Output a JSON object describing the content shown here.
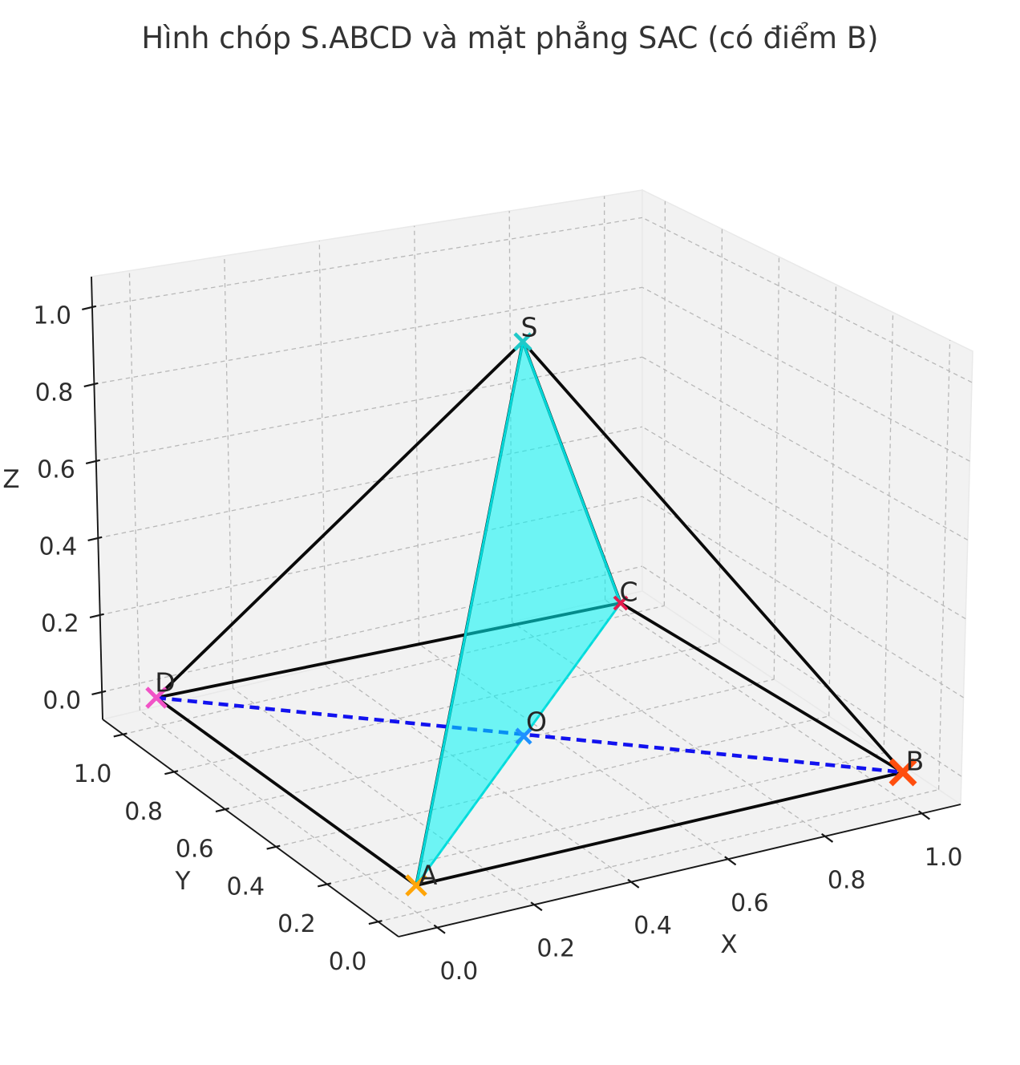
{
  "title": "Hình chóp S.ABCD và mặt phẳng SAC (có điểm B)",
  "chart_data": {
    "type": "scatter",
    "projection": "3d",
    "points": [
      {
        "label": "S",
        "x": 0.5,
        "y": 0.5,
        "z": 1.0,
        "marker": "x",
        "marker_color": "#1FC9C9"
      },
      {
        "label": "A",
        "x": 0.0,
        "y": 0.0,
        "z": 0.0,
        "marker": "x",
        "marker_color": "#FFA508"
      },
      {
        "label": "B",
        "x": 1.0,
        "y": 0.0,
        "z": 0.0,
        "marker": "x",
        "marker_color": "#FF4E0E"
      },
      {
        "label": "C",
        "x": 1.0,
        "y": 1.0,
        "z": 0.0,
        "marker": "x",
        "marker_color": "#E51B4D"
      },
      {
        "label": "D",
        "x": 0.0,
        "y": 1.0,
        "z": 0.0,
        "marker": "x",
        "marker_color": "#F153C6"
      },
      {
        "label": "O",
        "x": 0.5,
        "y": 0.5,
        "z": 0.0,
        "marker": "x",
        "marker_color": "#1E90FF"
      }
    ],
    "solid_edges": {
      "color": "#0a0a0a",
      "pairs": [
        [
          "A",
          "B"
        ],
        [
          "B",
          "C"
        ],
        [
          "C",
          "D"
        ],
        [
          "D",
          "A"
        ],
        [
          "S",
          "A"
        ],
        [
          "S",
          "B"
        ],
        [
          "S",
          "C"
        ],
        [
          "S",
          "D"
        ]
      ]
    },
    "dashed_diagonals": [
      {
        "name": "AC-hidden-diagonal",
        "pair": [
          "A",
          "C"
        ],
        "color": "#4f4f4f",
        "style": "dashed"
      },
      {
        "name": "BD-diagonal",
        "pair": [
          "D",
          "B"
        ],
        "color": "#1212EF",
        "style": "dashed"
      }
    ],
    "plane": {
      "name": "SAC",
      "vertices": [
        "S",
        "A",
        "C"
      ],
      "fill_color": "#00F5F5",
      "fill_opacity": 0.55,
      "edge_color": "#00DEDE"
    },
    "axes": {
      "x": {
        "label": "X",
        "ticks": [
          "0.0",
          "0.2",
          "0.4",
          "0.6",
          "0.8",
          "1.0"
        ]
      },
      "y": {
        "label": "Y",
        "ticks": [
          "0.0",
          "0.2",
          "0.4",
          "0.6",
          "0.8",
          "1.0"
        ]
      },
      "z": {
        "label": "Z",
        "ticks": [
          "0.0",
          "0.2",
          "0.4",
          "0.6",
          "0.8",
          "1.0"
        ]
      },
      "grid": true,
      "grid_style": "dashed",
      "grid_color": "#b8b8b8",
      "pane_color": "#f2f2f2",
      "spine_color": "#171717"
    }
  }
}
